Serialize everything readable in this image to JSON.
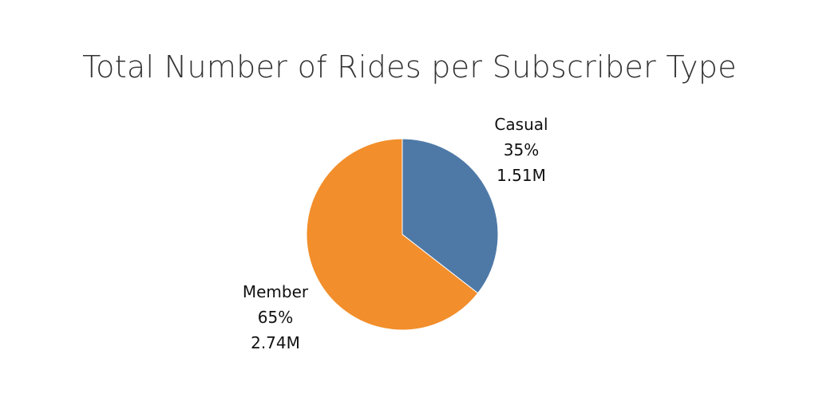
{
  "chart_data": {
    "type": "pie",
    "title": "Total Number of Rides per Subscriber Type",
    "slices": [
      {
        "name": "Casual",
        "percent_label": "35%",
        "value_label": "1.51M",
        "value": 1.51,
        "color": "#4e79a7"
      },
      {
        "name": "Member",
        "percent_label": "65%",
        "value_label": "2.74M",
        "value": 2.74,
        "color": "#f28e2b"
      }
    ],
    "units": "millions of rides",
    "start_angle": "12 o'clock",
    "direction": "clockwise",
    "legend": "none"
  }
}
